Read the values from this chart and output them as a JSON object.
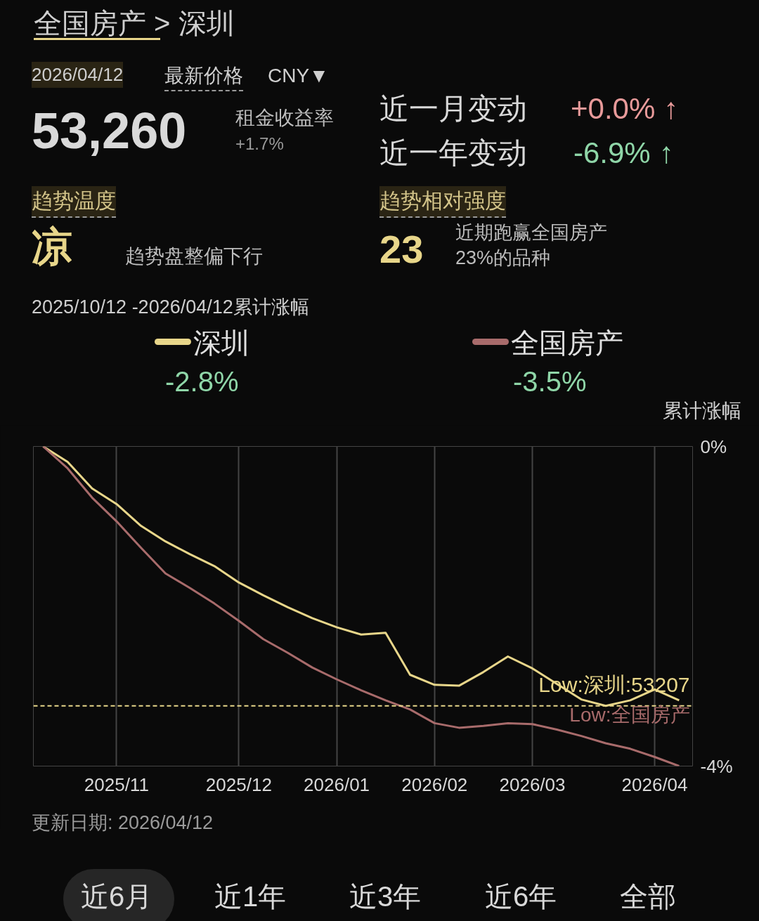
{
  "chart_data": {
    "type": "line",
    "title": "全国房产 > 深圳",
    "subtitle": "2025/10/12 -2026/04/12累计涨幅",
    "ylabel": "累计涨幅",
    "categories": [
      null,
      null,
      null,
      "2025/11",
      null,
      null,
      null,
      null,
      "2025/12",
      null,
      null,
      null,
      "2026/01",
      null,
      null,
      null,
      "2026/02",
      null,
      null,
      null,
      "2026/03",
      null,
      null,
      null,
      null,
      "2026/04",
      null
    ],
    "series": [
      {
        "name": "深圳",
        "color": "#e8d68a",
        "values": [
          0,
          -0.17,
          -0.46,
          -0.63,
          -0.87,
          -1.04,
          -1.18,
          -1.31,
          -1.49,
          -1.63,
          -1.76,
          -1.88,
          -1.98,
          -2.06,
          -2.04,
          -2.5,
          -2.61,
          -2.62,
          -2.47,
          -2.3,
          -2.43,
          -2.6,
          -2.77,
          -2.84,
          -2.78,
          -2.66,
          -2.78
        ]
      },
      {
        "name": "全国房产",
        "color": "#a86b6b",
        "values": [
          0,
          -0.24,
          -0.56,
          -0.82,
          -1.11,
          -1.39,
          -1.55,
          -1.72,
          -1.91,
          -2.11,
          -2.26,
          -2.42,
          -2.55,
          -2.67,
          -2.78,
          -2.88,
          -3.03,
          -3.08,
          -3.06,
          -3.03,
          -3.04,
          -3.1,
          -3.17,
          -3.25,
          -3.31,
          -3.4,
          -3.5
        ]
      }
    ],
    "ylim": [
      -3.5,
      0
    ],
    "yticks": [
      {
        "value": 0,
        "label": "0%"
      },
      {
        "value": -3.5,
        "label": "-4%"
      }
    ],
    "ref_lines": [
      {
        "axis": "y",
        "value": -2.84,
        "color": "#e8d68a",
        "line_style": "dashed"
      }
    ],
    "grid": "x",
    "legend": "top",
    "marker": "none",
    "line_style": "solid",
    "annotations": [
      "2026/04/12",
      "最新价格",
      "CNY▼",
      "53,260",
      "租金收益率",
      "+1.7%",
      "近一月变动",
      "+0.0% ↑",
      "近一年变动",
      "-6.9% ↑",
      "趋势温度",
      "凉",
      "趋势盘整偏下行",
      "趋势相对强度",
      "23",
      "近期跑赢全国房产",
      "23%的品种",
      "-2.8%",
      "-3.5%",
      "Low:全国房产",
      "更新日期: 2026/04/12",
      "近6月",
      "近1年",
      "近3年",
      "近6年",
      "全部",
      "Low:深圳:53207"
    ]
  }
}
